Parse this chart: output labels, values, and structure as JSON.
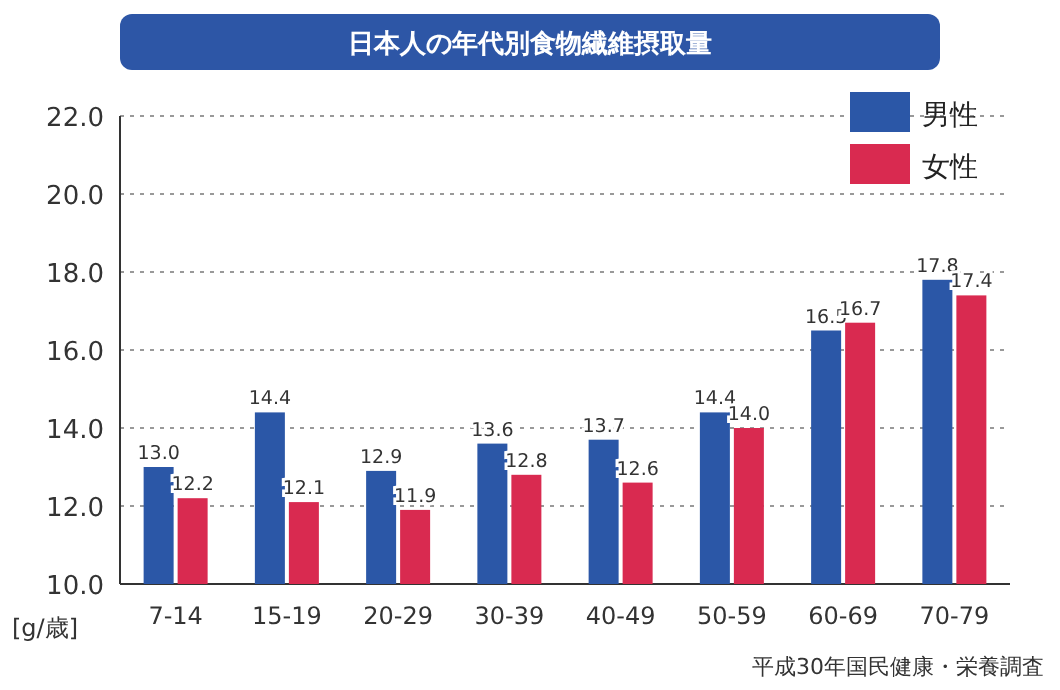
{
  "chart_data": {
    "type": "bar",
    "title": "日本人の年代別食物繊維摂取量",
    "ylabel": "[g/歳]",
    "categories": [
      "7-14",
      "15-19",
      "20-29",
      "30-39",
      "40-49",
      "50-59",
      "60-69",
      "70-79"
    ],
    "series": [
      {
        "name": "男性",
        "color": "#2b57a7",
        "values": [
          13.0,
          14.4,
          12.9,
          13.6,
          13.7,
          14.4,
          16.5,
          17.8
        ],
        "value_labels": [
          "13.0",
          "14.4",
          "12.9",
          "13.6",
          "13.7",
          "14.4",
          "16.5",
          "17.8"
        ]
      },
      {
        "name": "女性",
        "color": "#d92a50",
        "values": [
          12.2,
          12.1,
          11.9,
          12.8,
          12.6,
          14.0,
          16.7,
          17.4
        ],
        "value_labels": [
          "12.2",
          "12.1",
          "11.9",
          "12.8",
          "12.6",
          "14.0",
          "16.7",
          "17.4"
        ]
      }
    ],
    "ylim": [
      10.0,
      22.0
    ],
    "yticks": [
      {
        "value": 10,
        "label": "10.0"
      },
      {
        "value": 12,
        "label": "12.0"
      },
      {
        "value": 14,
        "label": "14.0"
      },
      {
        "value": 16,
        "label": "16.0"
      },
      {
        "value": 18,
        "label": "18.0"
      },
      {
        "value": 20,
        "label": "20.0"
      },
      {
        "value": 22,
        "label": "22.0"
      }
    ],
    "grid": "y",
    "legend": "top right",
    "annotations": [
      "平成30年国民健康・栄養調査"
    ]
  }
}
